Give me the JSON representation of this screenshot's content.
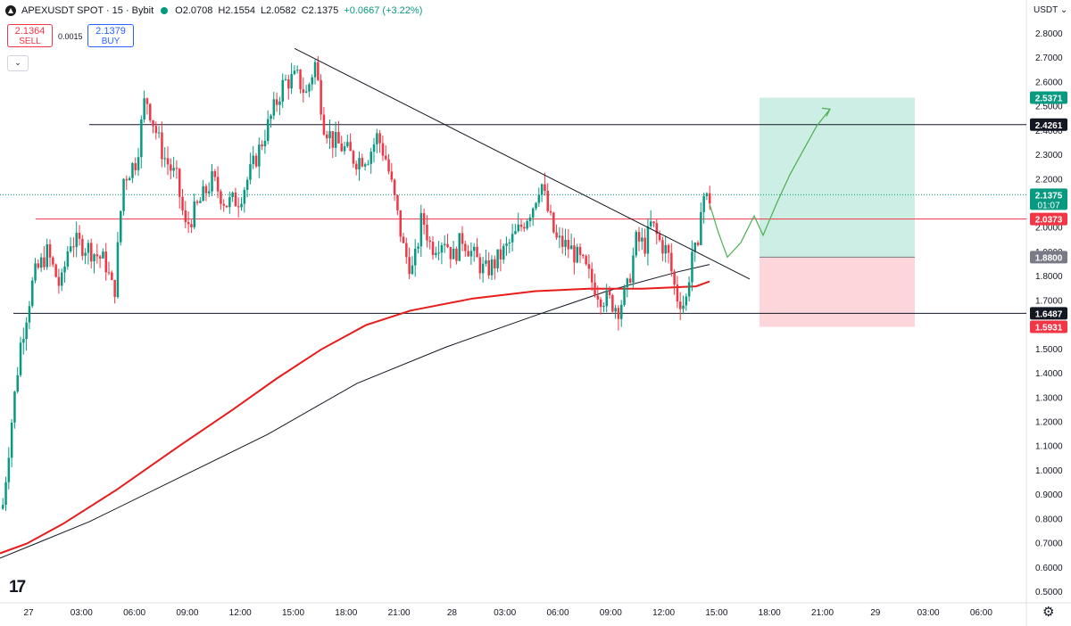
{
  "header": {
    "symbol": "APEXUSDT SPOT · 15 · Bybit",
    "open": "O2.0708",
    "high": "H2.1554",
    "low": "L2.0582",
    "close": "C2.1375",
    "change": "+0.0667 (+3.22%)",
    "positive_color": "#089981",
    "negative_color": "#f23645"
  },
  "trade_buttons": {
    "sell_price": "2.1364",
    "sell_label": "SELL",
    "spread": "0.0015",
    "buy_price": "2.1379",
    "buy_label": "BUY"
  },
  "currency_label": "USDT",
  "tv_logo": "17",
  "settings_icon": "gear-icon",
  "collapse_icon": "chevron-down-icon",
  "chart_data": {
    "type": "candlestick",
    "yaxis": {
      "min": 0.45,
      "max": 2.9,
      "ticks": [
        "2.8000",
        "2.7000",
        "2.6000",
        "2.5000",
        "2.4000",
        "2.3000",
        "2.2000",
        "2.1000",
        "2.0000",
        "1.9000",
        "1.8000",
        "1.7000",
        "1.6000",
        "1.5000",
        "1.4000",
        "1.3000",
        "1.2000",
        "1.1000",
        "1.0000",
        "0.9000",
        "0.8000",
        "0.7000",
        "0.6000",
        "0.5000"
      ]
    },
    "xaxis": {
      "ticks": [
        "27",
        "03:00",
        "06:00",
        "09:00",
        "12:00",
        "15:00",
        "18:00",
        "21:00",
        "28",
        "03:00",
        "06:00",
        "09:00",
        "12:00",
        "15:00",
        "18:00",
        "21:00",
        "29",
        "03:00",
        "06:00"
      ]
    },
    "price_path_keypoints": [
      [
        0,
        0.84
      ],
      [
        5,
        0.85
      ],
      [
        15,
        1.2
      ],
      [
        25,
        1.52
      ],
      [
        40,
        1.8
      ],
      [
        55,
        1.9
      ],
      [
        70,
        1.75
      ],
      [
        80,
        1.95
      ],
      [
        100,
        1.92
      ],
      [
        120,
        1.86
      ],
      [
        130,
        1.72
      ],
      [
        140,
        2.2
      ],
      [
        155,
        2.28
      ],
      [
        165,
        2.55
      ],
      [
        175,
        2.42
      ],
      [
        185,
        2.3
      ],
      [
        200,
        2.2
      ],
      [
        210,
        2.0
      ],
      [
        225,
        2.1
      ],
      [
        240,
        2.2
      ],
      [
        255,
        2.1
      ],
      [
        270,
        2.12
      ],
      [
        285,
        2.25
      ],
      [
        300,
        2.4
      ],
      [
        310,
        2.5
      ],
      [
        320,
        2.6
      ],
      [
        335,
        2.62
      ],
      [
        345,
        2.55
      ],
      [
        355,
        2.68
      ],
      [
        365,
        2.43
      ],
      [
        375,
        2.36
      ],
      [
        390,
        2.32
      ],
      [
        400,
        2.28
      ],
      [
        415,
        2.3
      ],
      [
        425,
        2.38
      ],
      [
        435,
        2.28
      ],
      [
        445,
        2.1
      ],
      [
        455,
        1.9
      ],
      [
        465,
        1.82
      ],
      [
        475,
        2.05
      ],
      [
        485,
        1.92
      ],
      [
        500,
        1.96
      ],
      [
        510,
        1.88
      ],
      [
        520,
        1.96
      ],
      [
        530,
        1.9
      ],
      [
        545,
        1.82
      ],
      [
        555,
        1.85
      ],
      [
        570,
        1.92
      ],
      [
        585,
        2.0
      ],
      [
        600,
        2.1
      ],
      [
        608,
        2.2
      ],
      [
        615,
        2.08
      ],
      [
        625,
        1.95
      ],
      [
        640,
        1.92
      ],
      [
        655,
        1.85
      ],
      [
        665,
        1.78
      ],
      [
        675,
        1.72
      ],
      [
        685,
        1.7
      ],
      [
        695,
        1.67
      ],
      [
        705,
        1.75
      ],
      [
        715,
        1.95
      ],
      [
        725,
        1.93
      ],
      [
        732,
        2.02
      ],
      [
        740,
        1.95
      ],
      [
        750,
        1.9
      ],
      [
        760,
        1.72
      ],
      [
        770,
        1.68
      ],
      [
        778,
        1.92
      ],
      [
        784,
        1.88
      ],
      [
        788,
        2.15
      ],
      [
        793,
        2.12
      ]
    ],
    "ema_red": [
      [
        0,
        0.66
      ],
      [
        30,
        0.7
      ],
      [
        70,
        0.78
      ],
      [
        130,
        0.92
      ],
      [
        200,
        1.1
      ],
      [
        260,
        1.25
      ],
      [
        310,
        1.38
      ],
      [
        360,
        1.5
      ],
      [
        410,
        1.6
      ],
      [
        460,
        1.66
      ],
      [
        530,
        1.71
      ],
      [
        600,
        1.74
      ],
      [
        660,
        1.75
      ],
      [
        720,
        1.75
      ],
      [
        780,
        1.76
      ],
      [
        795,
        1.78
      ]
    ],
    "ema_black": [
      [
        0,
        0.64
      ],
      [
        40,
        0.7
      ],
      [
        100,
        0.79
      ],
      [
        200,
        0.97
      ],
      [
        300,
        1.15
      ],
      [
        400,
        1.36
      ],
      [
        500,
        1.51
      ],
      [
        600,
        1.64
      ],
      [
        680,
        1.74
      ],
      [
        760,
        1.82
      ],
      [
        795,
        1.85
      ]
    ],
    "trendline": [
      [
        330,
        2.74
      ],
      [
        840,
        1.79
      ]
    ],
    "horizontal_lines": [
      {
        "price": 2.4261,
        "color": "#131722",
        "from_x": 100
      },
      {
        "price": 1.6487,
        "color": "#131722",
        "from_x": 15
      },
      {
        "price": 2.0373,
        "color": "#f23645",
        "from_x": 40
      },
      {
        "price": 2.1375,
        "color": "#089981",
        "dotted": true,
        "from_x": 0
      }
    ],
    "long_position": {
      "entry": 1.88,
      "target": 2.5371,
      "stop": 1.5931,
      "x_from": 851,
      "x_to": 1025
    },
    "projection_path": [
      [
        795,
        2.1
      ],
      [
        805,
        1.98
      ],
      [
        815,
        1.88
      ],
      [
        830,
        1.94
      ],
      [
        845,
        2.05
      ],
      [
        855,
        1.97
      ],
      [
        870,
        2.1
      ],
      [
        885,
        2.22
      ],
      [
        900,
        2.32
      ],
      [
        915,
        2.42
      ],
      [
        930,
        2.49
      ]
    ],
    "price_labels": [
      {
        "text": "2.5371",
        "price": 2.5371,
        "bg": "#089981",
        "fg": "#ffffff"
      },
      {
        "text": "2.4261",
        "price": 2.4261,
        "bg": "#131722",
        "fg": "#ffffff"
      },
      {
        "text": "2.1375",
        "price": 2.1375,
        "bg": "#089981",
        "fg": "#ffffff",
        "sub": "01:07"
      },
      {
        "text": "2.0373",
        "price": 2.0373,
        "bg": "#f23645",
        "fg": "#ffffff"
      },
      {
        "text": "1.8800",
        "price": 1.88,
        "bg": "#787b86",
        "fg": "#ffffff"
      },
      {
        "text": "1.6487",
        "price": 1.6487,
        "bg": "#131722",
        "fg": "#ffffff"
      },
      {
        "text": "1.5931",
        "price": 1.5931,
        "bg": "#f23645",
        "fg": "#ffffff"
      }
    ],
    "colors": {
      "up": "#089981",
      "down": "#f23645",
      "ema_red": "#e81b1b",
      "ema_black": "#131722",
      "target_zone": "#cdeee4",
      "stop_zone": "#fcd6da",
      "projection": "#4caf50"
    }
  }
}
